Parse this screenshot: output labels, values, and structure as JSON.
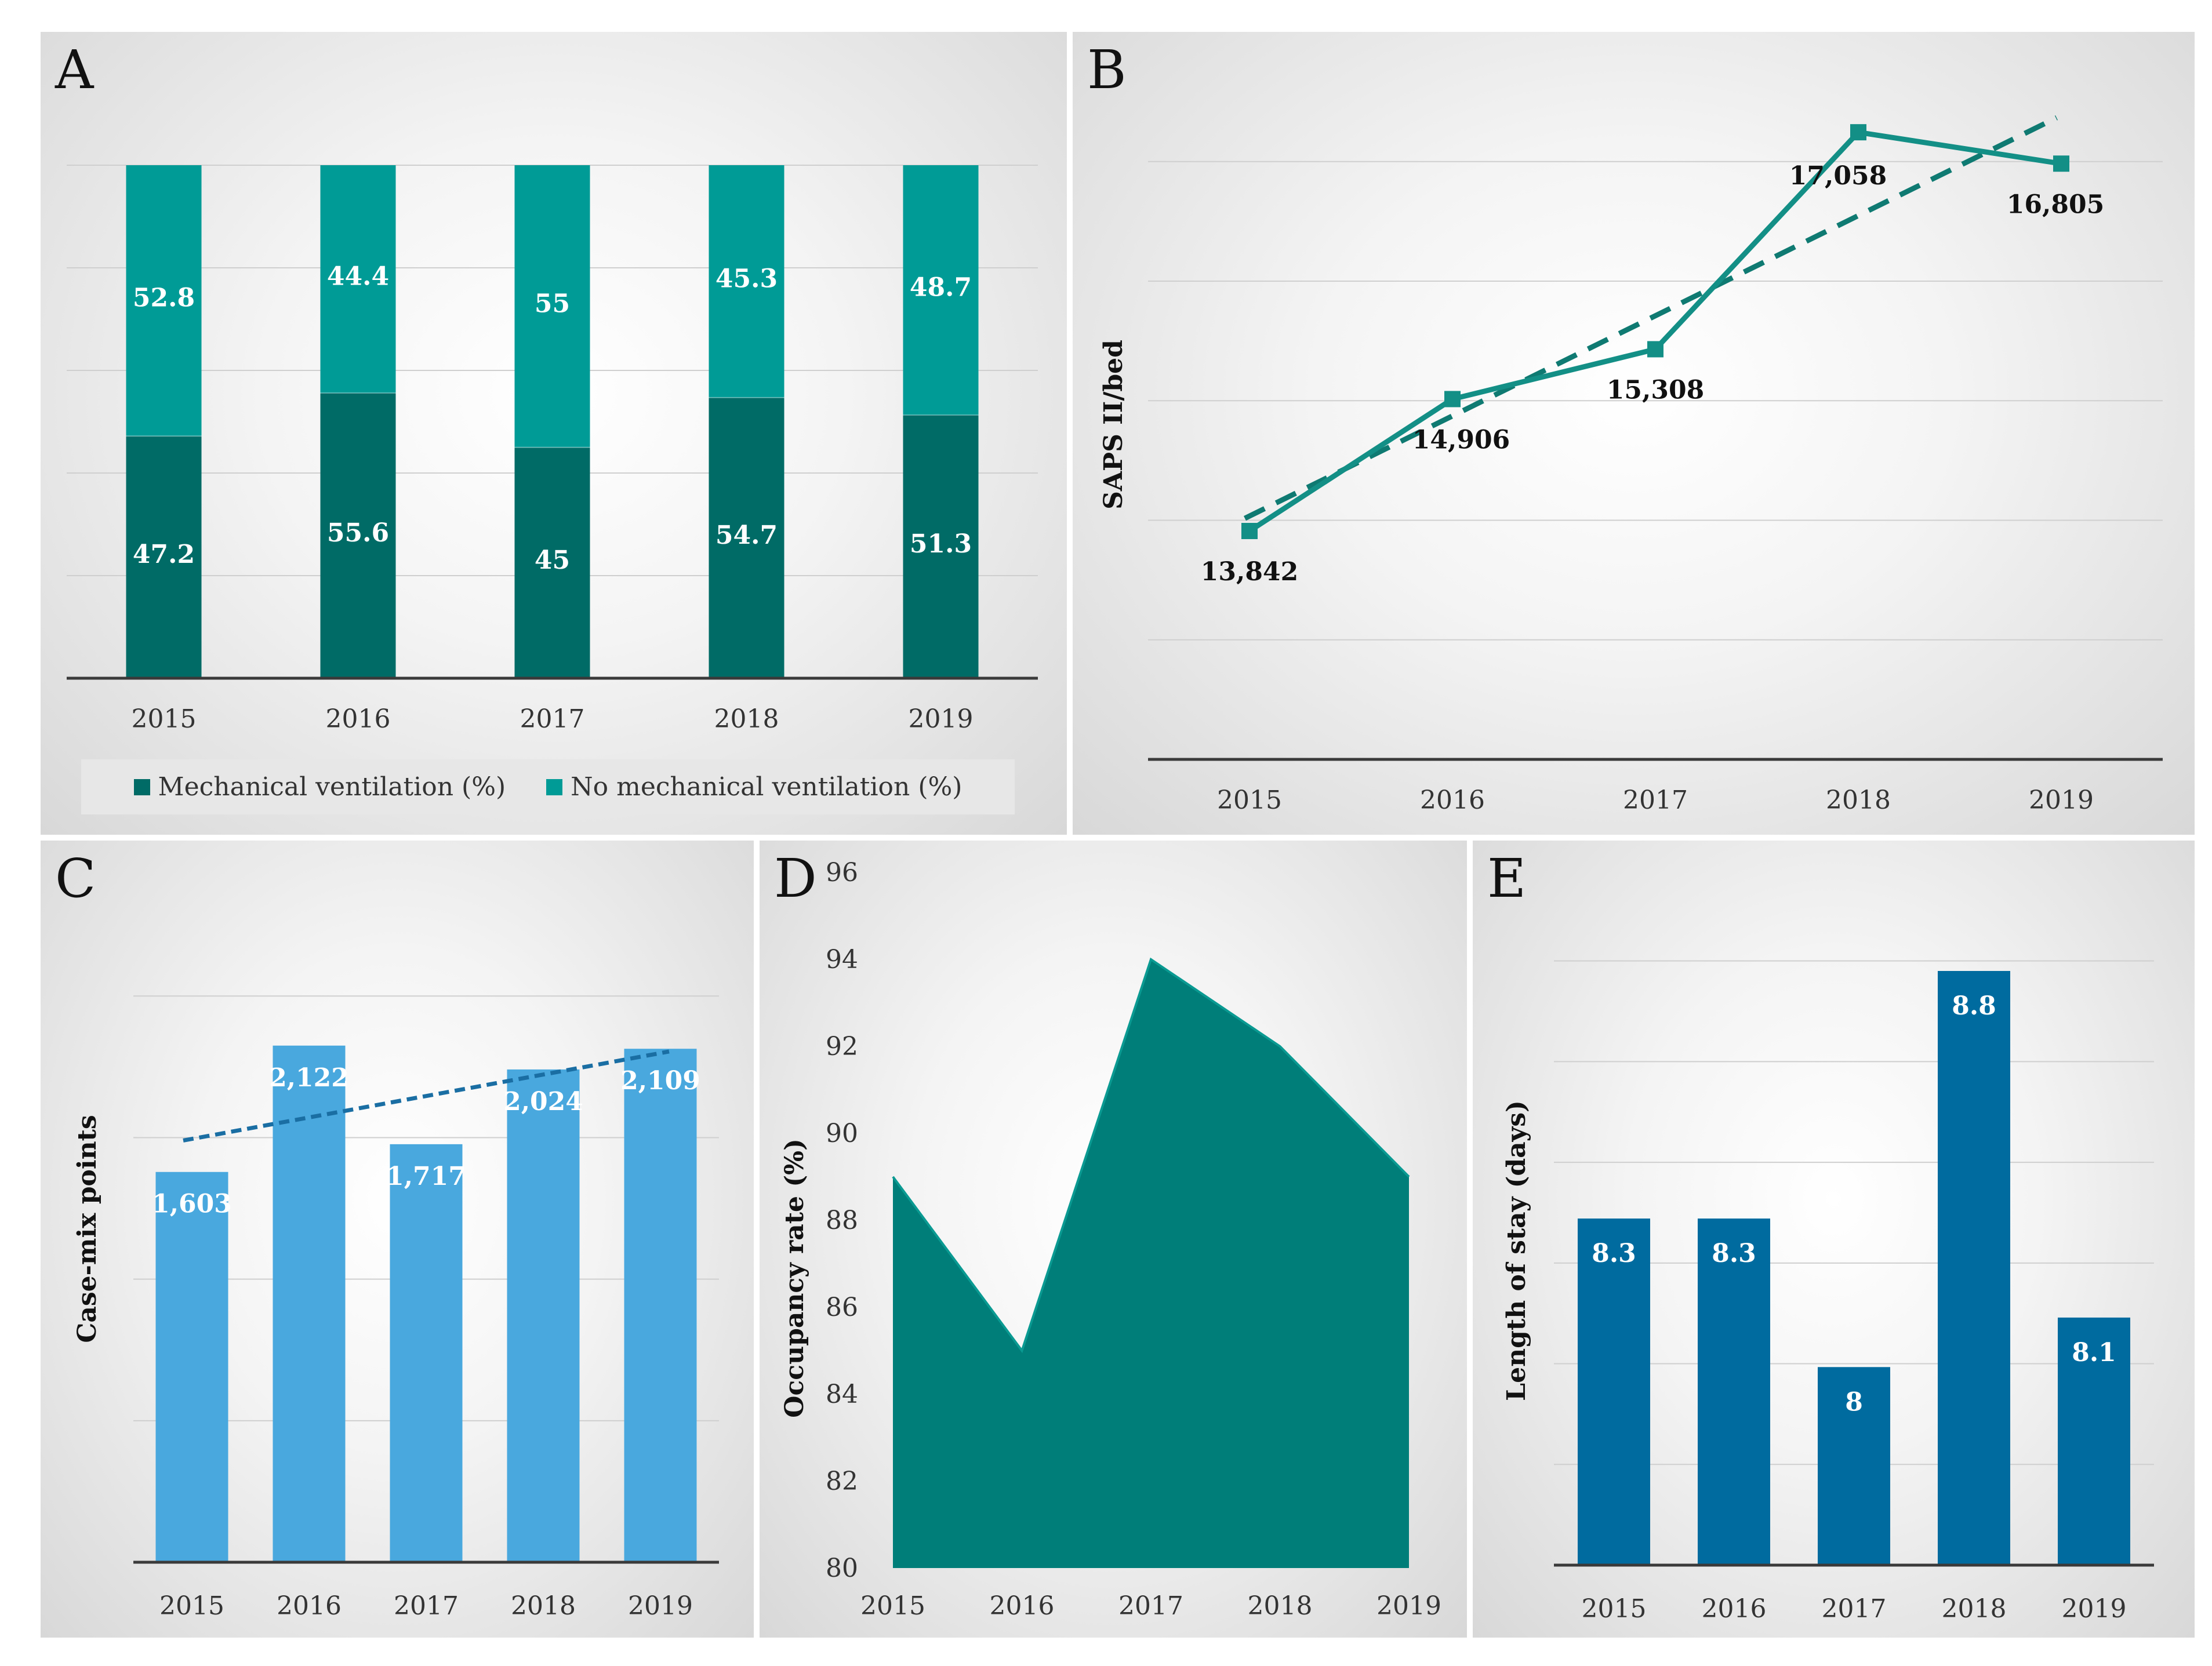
{
  "chart_data": [
    {
      "panel": "A",
      "type": "bar",
      "stacked": true,
      "categories": [
        "2015",
        "2016",
        "2017",
        "2018",
        "2019"
      ],
      "series": [
        {
          "name": "Mechanical ventilation (%)",
          "values": [
            47.2,
            55.6,
            45,
            54.7,
            51.3
          ],
          "color": "#006b66"
        },
        {
          "name": "No mechanical ventilation (%)",
          "values": [
            52.8,
            44.4,
            55,
            45.3,
            48.7
          ],
          "color": "#009b96"
        }
      ],
      "labels": {
        "mech": [
          "47.2",
          "55.6",
          "45",
          "54.7",
          "51.3"
        ],
        "nomech": [
          "52.8",
          "44.4",
          "55",
          "45.3",
          "48.7"
        ]
      },
      "ylim": [
        0,
        100
      ],
      "legend_position": "bottom"
    },
    {
      "panel": "B",
      "type": "line",
      "categories": [
        "2015",
        "2016",
        "2017",
        "2018",
        "2019"
      ],
      "values": [
        13842,
        14906,
        15308,
        17058,
        16805
      ],
      "labels": [
        "13,842",
        "14,906",
        "15,308",
        "17,058",
        "16,805"
      ],
      "trendline": "linear",
      "ylabel": "SAPS II/bed",
      "ylim": [
        12000,
        17400
      ],
      "color": "#138f86"
    },
    {
      "panel": "C",
      "type": "bar",
      "categories": [
        "2015",
        "2016",
        "2017",
        "2018",
        "2019"
      ],
      "values": [
        1603,
        2122,
        1717,
        2024,
        2109
      ],
      "labels": [
        "1,603",
        "2,122",
        "1,717",
        "2,024",
        "2,109"
      ],
      "trendline": "linear",
      "ylabel": "Case-mix points",
      "ylim": [
        0,
        2500
      ],
      "color": "#49a8de"
    },
    {
      "panel": "D",
      "type": "area",
      "categories": [
        "2015",
        "2016",
        "2017",
        "2018",
        "2019"
      ],
      "values": [
        89,
        85,
        94,
        92,
        89
      ],
      "ylabel": "Occupancy rate (%)",
      "ylim": [
        80,
        96
      ],
      "yticks": [
        "80",
        "82",
        "84",
        "86",
        "88",
        "90",
        "92",
        "94",
        "96"
      ],
      "color": "#007e79"
    },
    {
      "panel": "E",
      "type": "bar",
      "categories": [
        "2015",
        "2016",
        "2017",
        "2018",
        "2019"
      ],
      "values": [
        8.3,
        8.3,
        8,
        8.8,
        8.1
      ],
      "labels": [
        "8.3",
        "8.3",
        "8",
        "8.8",
        "8.1"
      ],
      "ylabel": "Length of stay (days)",
      "ylim": [
        7.6,
        8.8
      ],
      "color": "#006b9f"
    }
  ],
  "panels": {
    "A": {
      "letter": "A"
    },
    "B": {
      "letter": "B"
    },
    "C": {
      "letter": "C"
    },
    "D": {
      "letter": "D"
    },
    "E": {
      "letter": "E"
    }
  },
  "legend": {
    "mech_label": "Mechanical ventilation (%)",
    "nomech_label": "No mechanical ventilation (%)",
    "mech_color": "#006b66",
    "nomech_color": "#009b96"
  }
}
